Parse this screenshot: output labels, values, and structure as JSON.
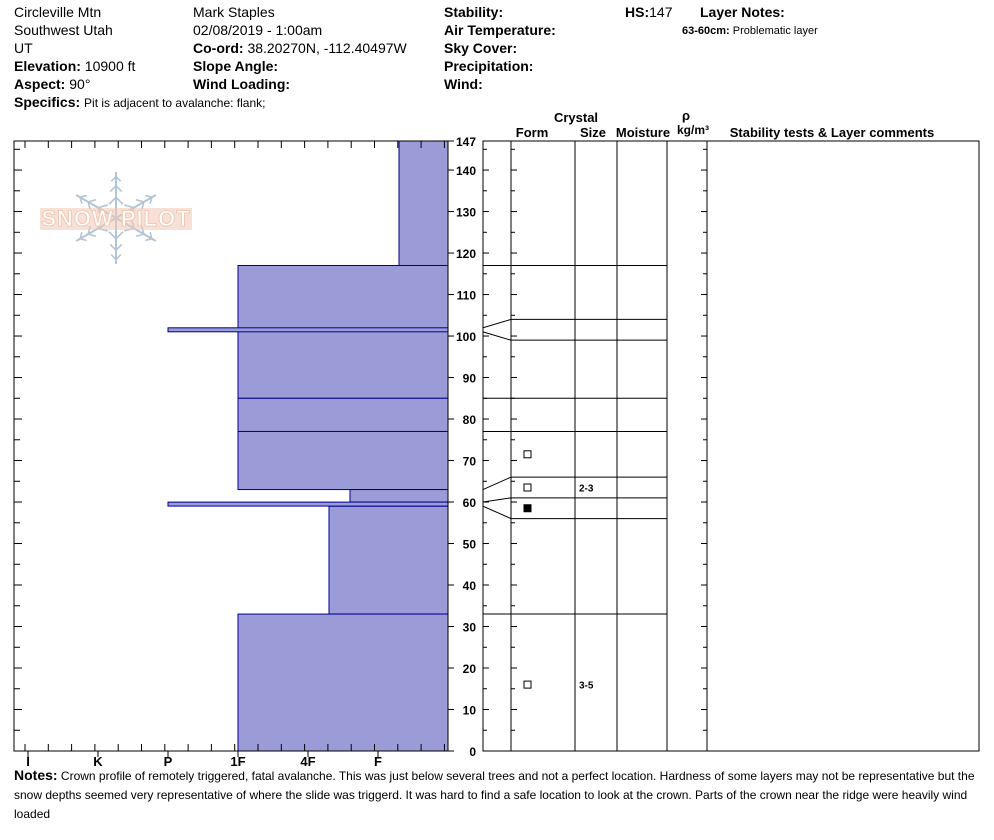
{
  "header": {
    "location": "Circleville Mtn",
    "region": "Southwest Utah",
    "state": "UT",
    "elevation_label": "Elevation:",
    "elevation_value": "10900 ft",
    "aspect_label": "Aspect:",
    "aspect_value": "90°",
    "specifics_label": "Specifics:",
    "specifics_value": "Pit is adjacent to avalanche: flank;",
    "observer": "Mark Staples",
    "datetime": "02/08/2019 - 1:00am",
    "coord_label": "Co-ord:",
    "coord_value": "38.20270N, -112.40497W",
    "slope_label": "Slope Angle:",
    "slope_value": "",
    "wind_loading_label": "Wind Loading:",
    "wind_loading_value": "",
    "stability_label": "Stability:",
    "stability_value": "",
    "air_temp_label": "Air Temperature:",
    "air_temp_value": "",
    "sky_label": "Sky Cover:",
    "sky_value": "",
    "precip_label": "Precipitation:",
    "precip_value": "",
    "wind_label": "Wind:",
    "wind_value": "",
    "hs_label": "HS:",
    "hs_value": "147",
    "layer_notes_label": "Layer Notes:",
    "layer_notes": [
      {
        "range": "63-60cm:",
        "text": "Problematic layer"
      }
    ]
  },
  "logo": {
    "text": "SNOW PILOT"
  },
  "columns": {
    "crystal": "Crystal",
    "form": "Form",
    "size": "Size",
    "moisture": "Moisture",
    "rho": "ρ",
    "density_unit": "kg/m³",
    "stability": "Stability tests & Layer comments"
  },
  "chart_data": {
    "type": "bar",
    "orientation": "horizontal",
    "y_unit": "cm",
    "ylim": [
      0,
      147
    ],
    "y_ticks": [
      0,
      10,
      20,
      30,
      40,
      50,
      60,
      70,
      80,
      90,
      100,
      110,
      120,
      130,
      140,
      147
    ],
    "hardness_scale": [
      "I",
      "K",
      "P",
      "1F",
      "4F",
      "F"
    ],
    "hardness_index": {
      "F": 1,
      "4F": 2,
      "1F": 3,
      "P": 4,
      "K": 5,
      "I": 6
    },
    "layers": [
      {
        "top": 147,
        "bottom": 117,
        "hardness": 0.7
      },
      {
        "top": 117,
        "bottom": 85,
        "hardness": 3
      },
      {
        "top": 85,
        "bottom": 77,
        "hardness": 3
      },
      {
        "top": 77,
        "bottom": 63,
        "hardness": 3
      },
      {
        "top": 63,
        "bottom": 60,
        "hardness": 1.4
      },
      {
        "top": 59,
        "bottom": 33,
        "hardness": 1.7
      },
      {
        "top": 33,
        "bottom": 0,
        "hardness": 3
      }
    ],
    "thin_layers": [
      {
        "depth": 101.5,
        "hardness": 4
      },
      {
        "depth": 59.5,
        "hardness": 4
      }
    ],
    "grain_layers": [
      {
        "chart_depth": 147,
        "table_depth": 147
      },
      {
        "chart_depth": 117,
        "table_depth": 117
      },
      {
        "chart_depth": 102,
        "table_depth": 104
      },
      {
        "chart_depth": 101,
        "table_depth": 99
      },
      {
        "chart_depth": 85,
        "table_depth": 85
      },
      {
        "chart_depth": 77,
        "table_depth": 77
      },
      {
        "chart_depth": 63,
        "table_depth": 66
      },
      {
        "chart_depth": 60,
        "table_depth": 61
      },
      {
        "chart_depth": 59,
        "table_depth": 56
      },
      {
        "chart_depth": 33,
        "table_depth": 33
      }
    ],
    "grain_symbols": [
      {
        "depth": 71.5,
        "filled": false,
        "size": ""
      },
      {
        "depth": 63.5,
        "filled": false,
        "size": "2-3"
      },
      {
        "depth": 58.5,
        "filled": true,
        "size": ""
      },
      {
        "depth": 16,
        "filled": false,
        "size": "3-5"
      }
    ]
  },
  "notes": {
    "label": "Notes:",
    "text": "Crown profile of remotely triggered, fatal avalanche. This was just below several trees and not a perfect location. Hardness of some layers may not be representative but the snow depths seemed very representative of where the slide was triggerd. It was hard to find a safe location to look at the crown. Parts of the crown near the ridge were heavily wind loaded"
  },
  "colors": {
    "layer_fill": "#9b9bd8",
    "layer_stroke": "#00008b",
    "logo_snowflake": "#b3c4d4",
    "logo_text_fill": "#f0c8b4",
    "logo_text_stroke": "#ffffff"
  }
}
